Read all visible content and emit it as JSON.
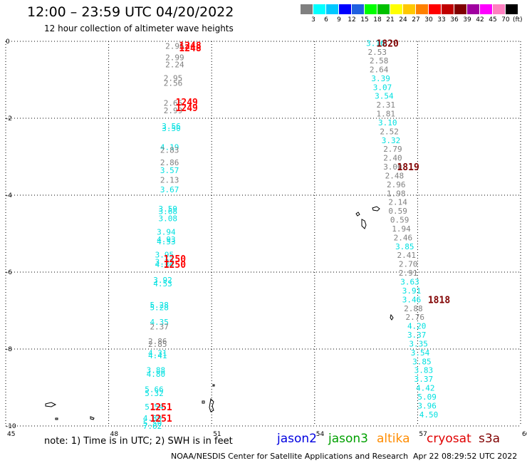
{
  "header": {
    "title": "12:00 – 23:59 UTC 04/20/2022",
    "subtitle": "12 hour collection of altimeter wave heights"
  },
  "colorbar": {
    "colors": [
      "#808080",
      "#00ffff",
      "#00c8ff",
      "#0000ff",
      "#2060e0",
      "#00ff00",
      "#00c000",
      "#ffff00",
      "#ffc800",
      "#ff8000",
      "#ff0000",
      "#c00000",
      "#800000",
      "#a000a0",
      "#ff00ff",
      "#ff80c0",
      "#000000"
    ],
    "ticks": [
      "3",
      "6",
      "9",
      "12",
      "15",
      "18",
      "21",
      "24",
      "27",
      "30",
      "33",
      "36",
      "39",
      "42",
      "45",
      "70"
    ],
    "unit": "(ft)"
  },
  "chart_data": {
    "type": "scatter",
    "title": "12:00 – 23:59 UTC 04/20/2022",
    "xlim": [
      45,
      60
    ],
    "ylim": [
      -10,
      0
    ],
    "x_ticks": [
      "45",
      "48",
      "51",
      "54",
      "57",
      "60"
    ],
    "y_ticks": [
      "0",
      "-2",
      "-4",
      "-6",
      "-8",
      "-10"
    ],
    "grid": true,
    "series": [
      {
        "name": "track-west",
        "points": [
          {
            "x": 49.65,
            "y": -0.12,
            "v": "2.96",
            "c": "#808080"
          },
          {
            "x": 49.65,
            "y": -0.42,
            "v": "2.99",
            "c": "#808080"
          },
          {
            "x": 49.65,
            "y": -0.6,
            "v": "2.24",
            "c": "#808080"
          },
          {
            "x": 49.6,
            "y": -0.95,
            "v": "2.95",
            "c": "#808080"
          },
          {
            "x": 49.6,
            "y": -1.08,
            "v": "2.56",
            "c": "#808080"
          },
          {
            "x": 49.6,
            "y": -1.6,
            "v": "2.65",
            "c": "#808080"
          },
          {
            "x": 49.6,
            "y": -1.8,
            "v": "2.99",
            "c": "#808080"
          },
          {
            "x": 49.55,
            "y": -2.2,
            "v": "3.56",
            "c": "#00e0e0"
          },
          {
            "x": 49.55,
            "y": -2.26,
            "v": "3.50",
            "c": "#00e0e0"
          },
          {
            "x": 49.5,
            "y": -2.75,
            "v": "4.19",
            "c": "#00e0e0"
          },
          {
            "x": 49.5,
            "y": -2.82,
            "v": "2.83",
            "c": "#808080"
          },
          {
            "x": 49.5,
            "y": -3.15,
            "v": "2.86",
            "c": "#808080"
          },
          {
            "x": 49.5,
            "y": -3.35,
            "v": "3.57",
            "c": "#00e0e0"
          },
          {
            "x": 49.5,
            "y": -3.6,
            "v": "2.13",
            "c": "#808080"
          },
          {
            "x": 49.5,
            "y": -3.85,
            "v": "3.67",
            "c": "#00e0e0"
          },
          {
            "x": 49.45,
            "y": -4.35,
            "v": "3.59",
            "c": "#00e0e0"
          },
          {
            "x": 49.45,
            "y": -4.42,
            "v": "3.68",
            "c": "#00e0e0"
          },
          {
            "x": 49.45,
            "y": -4.6,
            "v": "3.08",
            "c": "#00e0e0"
          },
          {
            "x": 49.4,
            "y": -4.95,
            "v": "3.94",
            "c": "#00e0e0"
          },
          {
            "x": 49.4,
            "y": -5.15,
            "v": "4.93",
            "c": "#00e0e0"
          },
          {
            "x": 49.4,
            "y": -5.2,
            "v": "4.53",
            "c": "#00e0e0"
          },
          {
            "x": 49.35,
            "y": -5.55,
            "v": "3.95",
            "c": "#00e0e0"
          },
          {
            "x": 49.35,
            "y": -5.73,
            "v": "3.33",
            "c": "#00e0e0"
          },
          {
            "x": 49.35,
            "y": -5.8,
            "v": "4.34",
            "c": "#00e0e0"
          },
          {
            "x": 49.3,
            "y": -6.2,
            "v": "3.92",
            "c": "#00e0e0"
          },
          {
            "x": 49.3,
            "y": -6.3,
            "v": "4.53",
            "c": "#00e0e0"
          },
          {
            "x": 49.2,
            "y": -6.85,
            "v": "5.28",
            "c": "#00e0e0"
          },
          {
            "x": 49.2,
            "y": -6.92,
            "v": "5.28",
            "c": "#00e0e0"
          },
          {
            "x": 49.2,
            "y": -7.3,
            "v": "4.35",
            "c": "#00e0e0"
          },
          {
            "x": 49.2,
            "y": -7.42,
            "v": "2.37",
            "c": "#808080"
          },
          {
            "x": 49.15,
            "y": -7.8,
            "v": "2.86",
            "c": "#808080"
          },
          {
            "x": 49.15,
            "y": -7.87,
            "v": "2.85",
            "c": "#808080"
          },
          {
            "x": 49.15,
            "y": -8.1,
            "v": "4.31",
            "c": "#00e0e0"
          },
          {
            "x": 49.15,
            "y": -8.17,
            "v": "4.41",
            "c": "#00e0e0"
          },
          {
            "x": 49.1,
            "y": -8.55,
            "v": "3.88",
            "c": "#00e0e0"
          },
          {
            "x": 49.1,
            "y": -8.65,
            "v": "4.80",
            "c": "#00e0e0"
          },
          {
            "x": 49.05,
            "y": -9.05,
            "v": "5.66",
            "c": "#00e0e0"
          },
          {
            "x": 49.05,
            "y": -9.15,
            "v": "5.32",
            "c": "#00e0e0"
          },
          {
            "x": 49.05,
            "y": -9.5,
            "v": "5.54",
            "c": "#00e0e0"
          },
          {
            "x": 49.0,
            "y": -9.8,
            "v": "4.89",
            "c": "#00e0e0"
          },
          {
            "x": 49.0,
            "y": -9.93,
            "v": "5.50",
            "c": "#00e0e0"
          },
          {
            "x": 49.0,
            "y": -10.0,
            "v": "7.62",
            "c": "#00e0e0"
          }
        ]
      },
      {
        "name": "track-east",
        "points": [
          {
            "x": 55.5,
            "y": -0.05,
            "v": "3.16",
            "c": "#00e0e0"
          },
          {
            "x": 55.55,
            "y": -0.28,
            "v": "2.53",
            "c": "#808080"
          },
          {
            "x": 55.6,
            "y": -0.5,
            "v": "2.58",
            "c": "#808080"
          },
          {
            "x": 55.6,
            "y": -0.73,
            "v": "2.64",
            "c": "#808080"
          },
          {
            "x": 55.65,
            "y": -0.96,
            "v": "3.39",
            "c": "#00e0e0"
          },
          {
            "x": 55.7,
            "y": -1.19,
            "v": "3.07",
            "c": "#00e0e0"
          },
          {
            "x": 55.75,
            "y": -1.42,
            "v": "3.54",
            "c": "#00e0e0"
          },
          {
            "x": 55.8,
            "y": -1.65,
            "v": "2.31",
            "c": "#808080"
          },
          {
            "x": 55.8,
            "y": -1.88,
            "v": "1.81",
            "c": "#808080"
          },
          {
            "x": 55.85,
            "y": -2.11,
            "v": "3.10",
            "c": "#00e0e0"
          },
          {
            "x": 55.9,
            "y": -2.34,
            "v": "2.52",
            "c": "#808080"
          },
          {
            "x": 55.95,
            "y": -2.57,
            "v": "3.32",
            "c": "#00e0e0"
          },
          {
            "x": 56.0,
            "y": -2.8,
            "v": "2.79",
            "c": "#808080"
          },
          {
            "x": 56.0,
            "y": -3.03,
            "v": "2.40",
            "c": "#808080"
          },
          {
            "x": 56.0,
            "y": -3.26,
            "v": "3.00",
            "c": "#808080"
          },
          {
            "x": 56.05,
            "y": -3.49,
            "v": "2.48",
            "c": "#808080"
          },
          {
            "x": 56.1,
            "y": -3.72,
            "v": "2.96",
            "c": "#808080"
          },
          {
            "x": 56.1,
            "y": -3.95,
            "v": "1.98",
            "c": "#808080"
          },
          {
            "x": 56.15,
            "y": -4.18,
            "v": "2.14",
            "c": "#808080"
          },
          {
            "x": 56.15,
            "y": -4.41,
            "v": "0.59",
            "c": "#808080"
          },
          {
            "x": 56.2,
            "y": -4.64,
            "v": "0.59",
            "c": "#808080"
          },
          {
            "x": 56.25,
            "y": -4.87,
            "v": "1.94",
            "c": "#808080"
          },
          {
            "x": 56.3,
            "y": -5.1,
            "v": "2.46",
            "c": "#808080"
          },
          {
            "x": 56.35,
            "y": -5.33,
            "v": "3.85",
            "c": "#00e0e0"
          },
          {
            "x": 56.4,
            "y": -5.56,
            "v": "2.41",
            "c": "#808080"
          },
          {
            "x": 56.45,
            "y": -5.79,
            "v": "2.70",
            "c": "#808080"
          },
          {
            "x": 56.45,
            "y": -6.02,
            "v": "2.91",
            "c": "#808080"
          },
          {
            "x": 56.5,
            "y": -6.25,
            "v": "3.63",
            "c": "#00e0e0"
          },
          {
            "x": 56.55,
            "y": -6.48,
            "v": "3.91",
            "c": "#00e0e0"
          },
          {
            "x": 56.55,
            "y": -6.71,
            "v": "3.46",
            "c": "#00e0e0"
          },
          {
            "x": 56.6,
            "y": -6.94,
            "v": "2.88",
            "c": "#808080"
          },
          {
            "x": 56.65,
            "y": -7.17,
            "v": "2.76",
            "c": "#808080"
          },
          {
            "x": 56.7,
            "y": -7.4,
            "v": "4.20",
            "c": "#00e0e0"
          },
          {
            "x": 56.7,
            "y": -7.63,
            "v": "3.37",
            "c": "#00e0e0"
          },
          {
            "x": 56.75,
            "y": -7.86,
            "v": "3.35",
            "c": "#00e0e0"
          },
          {
            "x": 56.8,
            "y": -8.09,
            "v": "3.54",
            "c": "#00e0e0"
          },
          {
            "x": 56.85,
            "y": -8.32,
            "v": "3.85",
            "c": "#00e0e0"
          },
          {
            "x": 56.9,
            "y": -8.55,
            "v": "3.83",
            "c": "#00e0e0"
          },
          {
            "x": 56.9,
            "y": -8.78,
            "v": "3.37",
            "c": "#00e0e0"
          },
          {
            "x": 56.95,
            "y": -9.01,
            "v": "4.42",
            "c": "#00e0e0"
          },
          {
            "x": 57.0,
            "y": -9.24,
            "v": "5.09",
            "c": "#00e0e0"
          },
          {
            "x": 57.0,
            "y": -9.47,
            "v": "3.96",
            "c": "#00e0e0"
          },
          {
            "x": 57.05,
            "y": -9.7,
            "v": "4.50",
            "c": "#00e0e0"
          }
        ]
      }
    ],
    "annotations": [
      {
        "x": 50.05,
        "y": -0.1,
        "text": "1248",
        "c": "#ff0000"
      },
      {
        "x": 50.05,
        "y": -0.17,
        "text": "1248",
        "c": "#ff0000"
      },
      {
        "x": 49.95,
        "y": -1.57,
        "text": "1249",
        "c": "#ff0000"
      },
      {
        "x": 49.95,
        "y": -1.72,
        "text": "1249",
        "c": "#ff0000"
      },
      {
        "x": 49.6,
        "y": -5.65,
        "text": "1250",
        "c": "#ff0000"
      },
      {
        "x": 49.6,
        "y": -5.8,
        "text": "1250",
        "c": "#ff0000"
      },
      {
        "x": 49.2,
        "y": -9.5,
        "text": "1251",
        "c": "#ff0000"
      },
      {
        "x": 49.2,
        "y": -9.8,
        "text": "1251",
        "c": "#ff0000"
      },
      {
        "x": 55.8,
        "y": -0.05,
        "text": "1820",
        "c": "#800000"
      },
      {
        "x": 56.4,
        "y": -3.26,
        "text": "1819",
        "c": "#800000"
      },
      {
        "x": 57.3,
        "y": -6.71,
        "text": "1818",
        "c": "#800000"
      }
    ]
  },
  "footer": {
    "note": "note: 1) Time is in UTC; 2) SWH is in feet",
    "legend": [
      {
        "label": "jason2",
        "color": "#0000e0"
      },
      {
        "label": "jason3",
        "color": "#00a000"
      },
      {
        "label": "altika",
        "color": "#ff8c00"
      },
      {
        "label": "cryosat",
        "color": "#e00000"
      },
      {
        "label": "s3a",
        "color": "#800000"
      }
    ],
    "credit": "NOAA/NESDIS Center for Satellite Applications and Research",
    "timestamp": "Apr 22 08:29:52 UTC 2022"
  }
}
